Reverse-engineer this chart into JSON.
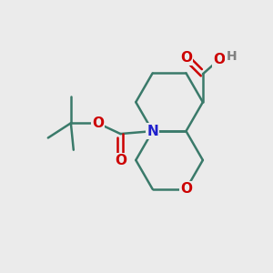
{
  "bg_color": "#ebebeb",
  "bond_color": "#3a7a6a",
  "bond_width": 1.8,
  "N_color": "#2020cc",
  "O_color": "#cc0000",
  "H_color": "#808080",
  "font_size_atom": 11,
  "fig_w": 3.0,
  "fig_h": 3.0,
  "dpi": 100,
  "xlim": [
    0,
    10
  ],
  "ylim": [
    0,
    10
  ]
}
